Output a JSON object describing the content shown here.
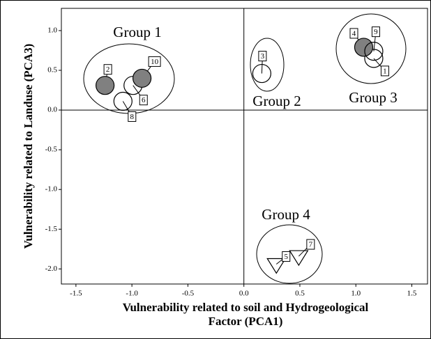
{
  "chart_data": {
    "type": "scatter",
    "x_label": [
      "Vulnerability related to soil and Hydrogeological",
      "Factor (PCA1)"
    ],
    "y_label": "Vulnerability related to Landuse (PCA3)",
    "annotations": [
      "Group 1",
      "Group 2",
      "Group 3",
      "Group 4"
    ],
    "labels": [
      "1",
      "2",
      "3",
      "4",
      "5",
      "6",
      "7",
      "8",
      "9",
      "10"
    ],
    "x": [
      1.16,
      -1.24,
      0.16,
      1.07,
      0.29,
      -0.99,
      0.49,
      -1.08,
      1.16,
      -0.91
    ],
    "y": [
      0.65,
      0.31,
      0.46,
      0.79,
      -1.94,
      0.31,
      -1.84,
      0.11,
      0.74,
      0.4
    ],
    "markers": [
      "open-circle",
      "filled-circle",
      "open-circle",
      "filled-circle",
      "triangle",
      "open-circle",
      "triangle",
      "open-circle",
      "open-circle",
      "filled-circle"
    ],
    "fill_color": "#808080",
    "xlim": [
      -1.63,
      1.64
    ],
    "ylim": [
      -2.19,
      1.28
    ],
    "xticks": [
      -1.5,
      {
        "value": -1.0,
        "label": "-1.0"
      },
      -0.5,
      {
        "value": 0.0,
        "label": "0.0"
      },
      0.5,
      {
        "value": 1.0,
        "label": "1.0"
      },
      1.5
    ],
    "yticks": [
      {
        "value": 1.0,
        "label": "1.0"
      },
      0.5,
      {
        "value": 0.0,
        "label": "0.0"
      },
      -0.5,
      {
        "value": -1.0,
        "label": "-1.0"
      },
      -1.5,
      {
        "value": -2.0,
        "label": "-2.0"
      }
    ]
  }
}
